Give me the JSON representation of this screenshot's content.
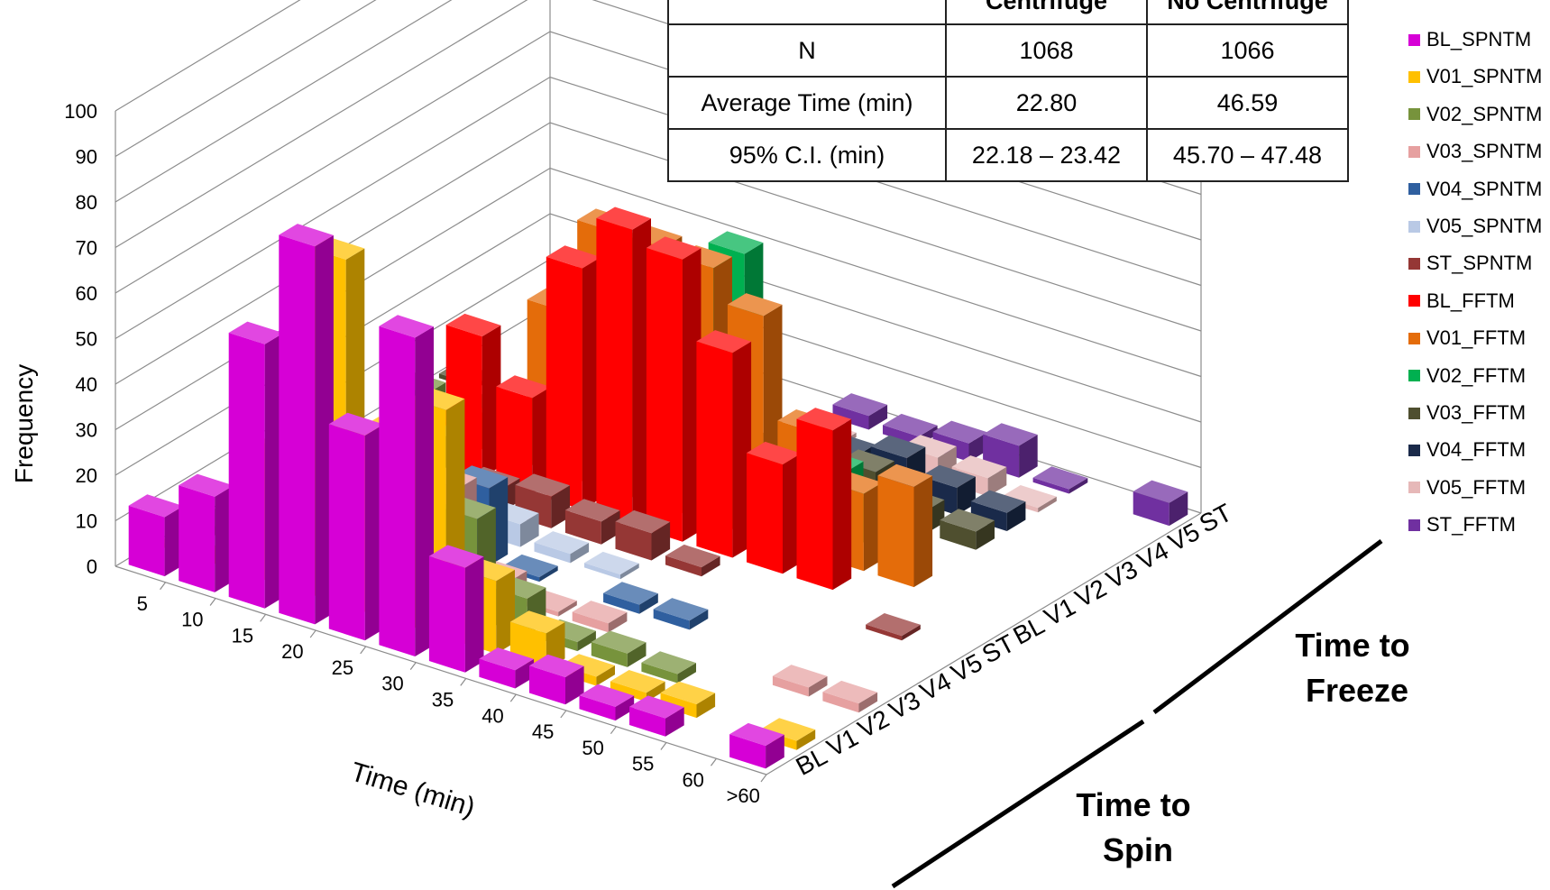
{
  "chart_data": {
    "type": "bar",
    "subtype": "3d-column",
    "ylabel": "Frequency",
    "xlabel": "Time (min)",
    "zlabel_spin": "Time to Spin",
    "zlabel_freeze": "Time to Freeze",
    "ylim": [
      0,
      100
    ],
    "yticks": [
      "0",
      "10",
      "20",
      "30",
      "40",
      "50",
      "60",
      "70",
      "80",
      "90",
      "100"
    ],
    "categories": [
      "5",
      "10",
      "15",
      "20",
      "25",
      "30",
      "35",
      "40",
      "45",
      "50",
      "55",
      "60",
      ">60"
    ],
    "depth_labels_spin": [
      "BL",
      "V1",
      "V2",
      "V3",
      "V4",
      "V5",
      "ST"
    ],
    "depth_labels_freeze": [
      "BL",
      "V1",
      "V2",
      "V3",
      "V4",
      "V5",
      "ST"
    ],
    "legend_position": "right",
    "series": [
      {
        "name": "BL_SPNTM",
        "color": "#D600D6",
        "values": [
          13,
          21,
          58,
          83,
          45,
          70,
          23,
          4,
          6,
          3,
          4,
          0,
          5
        ]
      },
      {
        "name": "V01_SPNTM",
        "color": "#FFC000",
        "values": [
          1,
          3,
          30,
          76,
          40,
          50,
          16,
          8,
          2,
          2,
          3,
          0,
          2
        ]
      },
      {
        "name": "V02_SPNTM",
        "color": "#77933C",
        "values": [
          2,
          5,
          20,
          27,
          46,
          22,
          8,
          2,
          3,
          2,
          0,
          0,
          0
        ]
      },
      {
        "name": "V03_SPNTM",
        "color": "#E6A0A0",
        "values": [
          1,
          2,
          9,
          27,
          21,
          4,
          1,
          2,
          0,
          0,
          0,
          2,
          2
        ]
      },
      {
        "name": "V04_SPNTM",
        "color": "#2F5F9F",
        "values": [
          0,
          3,
          8,
          24,
          17,
          1,
          0,
          2,
          2,
          0,
          0,
          0,
          0
        ]
      },
      {
        "name": "V05_SPNTM",
        "color": "#B9C9E5",
        "values": [
          0,
          1,
          4,
          3,
          5,
          2,
          1,
          0,
          0,
          0,
          0,
          0,
          0
        ]
      },
      {
        "name": "ST_SPNTM",
        "color": "#953735",
        "values": [
          0,
          1,
          3,
          5,
          7,
          5,
          6,
          2,
          0,
          0,
          0,
          1,
          0
        ]
      },
      {
        "name": "BL_FFTM",
        "color": "#FF0000",
        "values": [
          0,
          6,
          31,
          21,
          53,
          65,
          62,
          45,
          24,
          35,
          0,
          0,
          0
        ]
      },
      {
        "name": "V01_FFTM",
        "color": "#E46C0A",
        "values": [
          0,
          3,
          8,
          36,
          57,
          57,
          56,
          49,
          27,
          17,
          22,
          0,
          0
        ]
      },
      {
        "name": "V02_FFTM",
        "color": "#00B050",
        "values": [
          0,
          2,
          0,
          1,
          0,
          0,
          55,
          10,
          14,
          10,
          0,
          0,
          0
        ]
      },
      {
        "name": "V03_FFTM",
        "color": "#4F4F2F",
        "values": [
          1,
          0,
          1,
          0,
          0,
          0,
          7,
          6,
          10,
          5,
          4,
          0,
          0
        ]
      },
      {
        "name": "V04_FFTM",
        "color": "#1A2A4A",
        "values": [
          0,
          0,
          1,
          1,
          2,
          0,
          4,
          6,
          9,
          6,
          4,
          0,
          0
        ]
      },
      {
        "name": "V05_FFTM",
        "color": "#E6B8B8",
        "values": [
          0,
          0,
          0,
          0,
          0,
          0,
          1,
          0,
          5,
          4,
          1,
          0,
          0
        ]
      },
      {
        "name": "ST_FFTM",
        "color": "#7030A0",
        "values": [
          0,
          0,
          0,
          0,
          0,
          0,
          3,
          2,
          4,
          7,
          1,
          0,
          5
        ]
      }
    ]
  },
  "stats_table": {
    "headers": [
      "",
      "Centrifuge",
      "No Centrifuge"
    ],
    "rows": [
      [
        "N",
        "1068",
        "1066"
      ],
      [
        "Average Time (min)",
        "22.80",
        "46.59"
      ],
      [
        "95% C.I. (min)",
        "22.18 – 23.42",
        "45.70 – 47.48"
      ]
    ]
  }
}
